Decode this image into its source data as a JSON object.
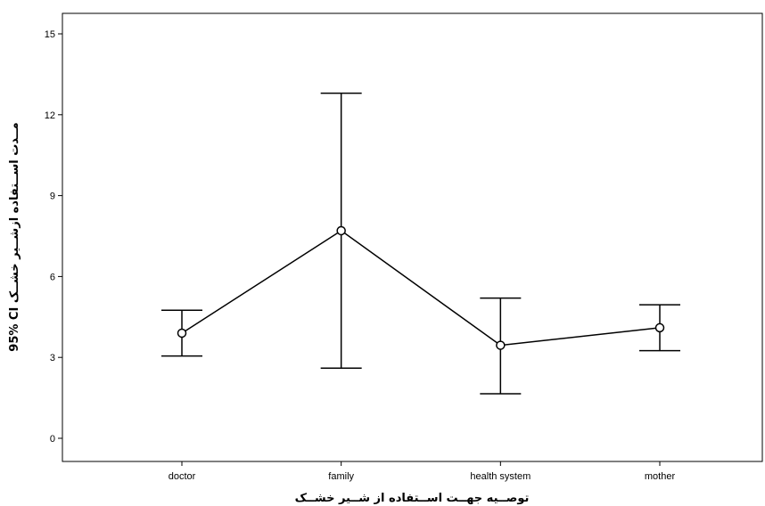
{
  "chart_data": {
    "type": "line",
    "subtype": "error-bar",
    "title": "",
    "xlabel": "توصــیه جهــت اســتفاده از شــیر خشــک",
    "ylabel": "95% CI مــدت اســتفاده ازشــیر خشــک",
    "categories": [
      "doctor",
      "family",
      "health system",
      "mother"
    ],
    "series": [
      {
        "mean": [
          3.9,
          7.7,
          3.45,
          4.1
        ],
        "ci_lower": [
          3.05,
          2.6,
          1.65,
          3.25
        ],
        "ci_upper": [
          4.75,
          12.8,
          5.2,
          4.95
        ]
      }
    ],
    "ylim": [
      -1,
      16
    ],
    "yticks": [
      0,
      3,
      6,
      9,
      12,
      15
    ],
    "grid": false,
    "legend": "none",
    "colors": {
      "line": "#000000",
      "background": "#ffffff"
    }
  }
}
